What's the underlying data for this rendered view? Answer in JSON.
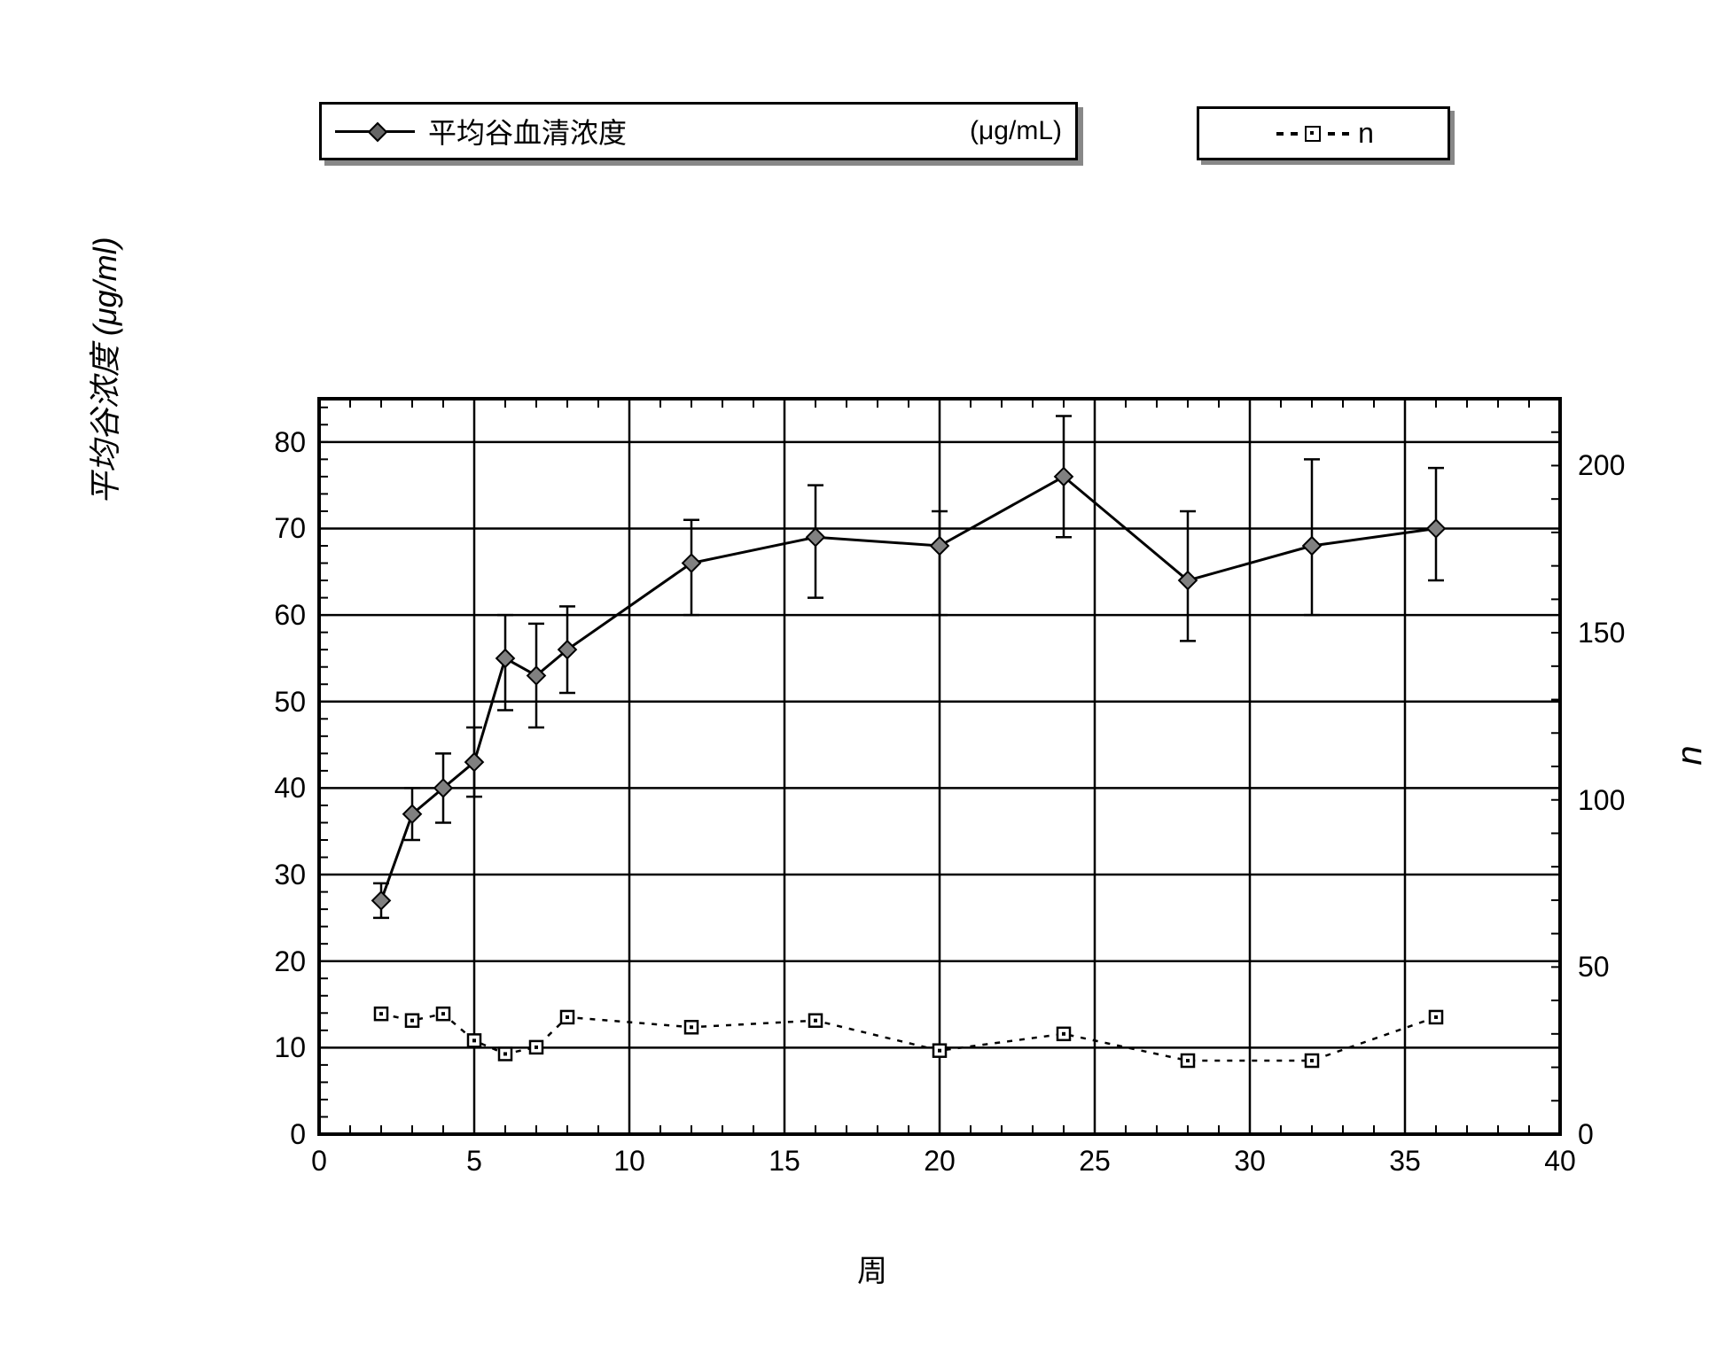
{
  "chart": {
    "type": "line+scatter",
    "background_color": "#ffffff",
    "border_color": "#000000",
    "grid_color": "#000000",
    "line_width_main": 3,
    "line_width_grid": 2.5,
    "title_fontsize": 32,
    "label_fontsize": 34,
    "tick_fontsize": 32,
    "x_axis": {
      "label": "周",
      "min": 0,
      "max": 40,
      "major_tick_step": 5,
      "ticks": [
        0,
        5,
        10,
        15,
        20,
        25,
        30,
        35,
        40
      ]
    },
    "y_axis_left": {
      "label": "平均谷浓度 (μg/ml)",
      "min": 0,
      "max": 85,
      "ticks": [
        0,
        10,
        20,
        30,
        40,
        50,
        60,
        70,
        80
      ],
      "grid_lines_at": [
        10,
        20,
        30,
        40,
        50,
        60,
        70,
        80
      ]
    },
    "y_axis_right": {
      "label": "n",
      "min": 0,
      "max": 220,
      "ticks": [
        0,
        50,
        100,
        150,
        200
      ]
    },
    "legends": {
      "box1": {
        "series_label": "平均谷血清浓度",
        "unit": "(μg/mL)",
        "marker": "diamond",
        "line_style": "solid"
      },
      "box2": {
        "series_label": "n",
        "marker": "square-dot",
        "line_style": "dashed"
      }
    },
    "series_concentration": {
      "name": "平均谷血清浓度",
      "marker": "diamond",
      "marker_size": 14,
      "marker_fill": "#808080",
      "marker_stroke": "#000000",
      "line_color": "#000000",
      "line_width": 3,
      "error_bar_color": "#000000",
      "points": [
        {
          "x": 2,
          "y": 27,
          "err_lo": 2,
          "err_hi": 2
        },
        {
          "x": 3,
          "y": 37,
          "err_lo": 3,
          "err_hi": 3
        },
        {
          "x": 4,
          "y": 40,
          "err_lo": 4,
          "err_hi": 4
        },
        {
          "x": 5,
          "y": 43,
          "err_lo": 4,
          "err_hi": 4
        },
        {
          "x": 6,
          "y": 55,
          "err_lo": 6,
          "err_hi": 5
        },
        {
          "x": 7,
          "y": 53,
          "err_lo": 6,
          "err_hi": 6
        },
        {
          "x": 8,
          "y": 56,
          "err_lo": 5,
          "err_hi": 5
        },
        {
          "x": 12,
          "y": 66,
          "err_lo": 6,
          "err_hi": 5
        },
        {
          "x": 16,
          "y": 69,
          "err_lo": 7,
          "err_hi": 6
        },
        {
          "x": 20,
          "y": 68,
          "err_lo": 8,
          "err_hi": 4
        },
        {
          "x": 24,
          "y": 76,
          "err_lo": 7,
          "err_hi": 7
        },
        {
          "x": 28,
          "y": 64,
          "err_lo": 7,
          "err_hi": 8
        },
        {
          "x": 32,
          "y": 68,
          "err_lo": 8,
          "err_hi": 10
        },
        {
          "x": 36,
          "y": 70,
          "err_lo": 6,
          "err_hi": 7
        }
      ]
    },
    "series_n": {
      "name": "n",
      "marker": "square",
      "marker_size": 14,
      "marker_fill": "#ffffff",
      "marker_stroke": "#000000",
      "line_style": "dashed",
      "line_color": "#000000",
      "dash_pattern": "6,8",
      "points_right_axis": [
        {
          "x": 2,
          "n": 36
        },
        {
          "x": 3,
          "n": 34
        },
        {
          "x": 4,
          "n": 36
        },
        {
          "x": 5,
          "n": 28
        },
        {
          "x": 6,
          "n": 24
        },
        {
          "x": 7,
          "n": 26
        },
        {
          "x": 8,
          "n": 35
        },
        {
          "x": 12,
          "n": 32
        },
        {
          "x": 16,
          "n": 34
        },
        {
          "x": 20,
          "n": 25
        },
        {
          "x": 24,
          "n": 30
        },
        {
          "x": 28,
          "n": 22
        },
        {
          "x": 32,
          "n": 22
        },
        {
          "x": 36,
          "n": 35
        }
      ]
    }
  }
}
